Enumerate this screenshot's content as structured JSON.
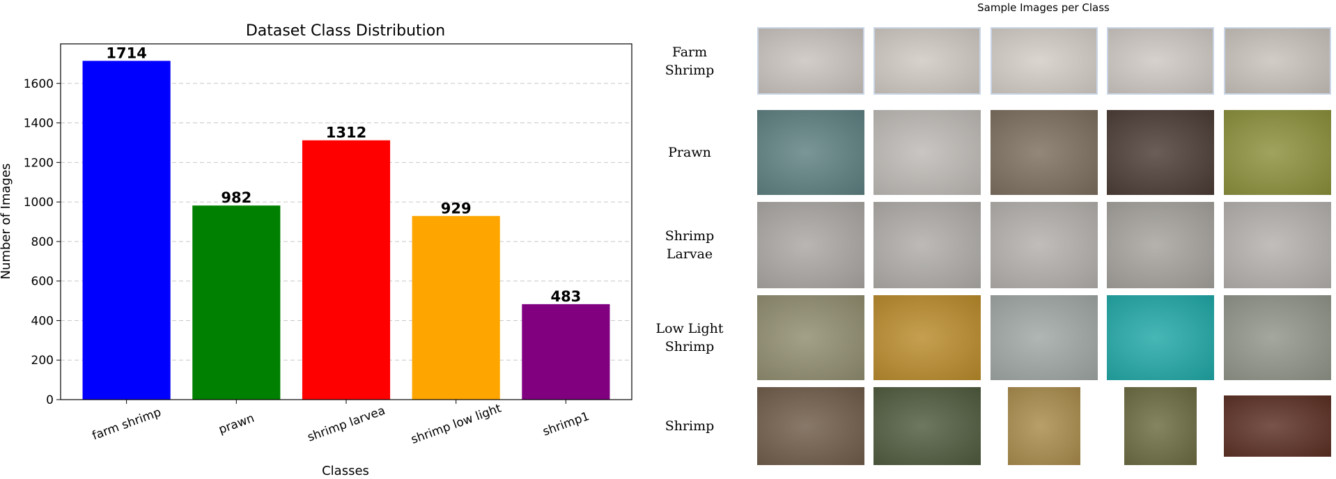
{
  "chart_data": {
    "type": "bar",
    "title": "Dataset Class Distribution",
    "xlabel": "Classes",
    "ylabel": "Number of Images",
    "categories": [
      "farm shrimp",
      "prawn",
      "shrimp larvea",
      "shrimp low light",
      "shrimp1"
    ],
    "values": [
      1714,
      982,
      1312,
      929,
      483
    ],
    "colors": [
      "#0000ff",
      "#008000",
      "#ff0000",
      "#ffa500",
      "#800080"
    ],
    "ylim": [
      0,
      1800
    ],
    "yticks": [
      0,
      200,
      400,
      600,
      800,
      1000,
      1200,
      1400,
      1600
    ],
    "grid": "y dashed",
    "legend": "none"
  },
  "samples": {
    "title": "Sample Images per Class",
    "rows": [
      {
        "label_lines": [
          "Farm",
          "Shrimp"
        ],
        "swatches": [
          "#c9c2bd",
          "#cfc8c2",
          "#d3ccc6",
          "#cdc7c1",
          "#c8c1bb"
        ]
      },
      {
        "label_lines": [
          "Prawn"
        ],
        "swatches": [
          "#5d7f80",
          "#bdb9b5",
          "#7b6d5d",
          "#4a3a33",
          "#8a8f3a"
        ]
      },
      {
        "label_lines": [
          "Shrimp",
          "Larvae"
        ],
        "swatches": [
          "#a9a6a2",
          "#aeaba7",
          "#b2afab",
          "#a4a19c",
          "#b3b0ac"
        ]
      },
      {
        "label_lines": [
          "Low Light",
          "Shrimp"
        ],
        "swatches": [
          "#8f8c6e",
          "#b98a2a",
          "#9fa6a3",
          "#1fa7a6",
          "#8f9488"
        ]
      },
      {
        "label_lines": [
          "Shrimp"
        ],
        "swatches": [
          "#6f5b48",
          "#4e5a3d",
          "#a88a4a",
          "#6b6a40",
          "#5a2e22"
        ]
      }
    ]
  }
}
